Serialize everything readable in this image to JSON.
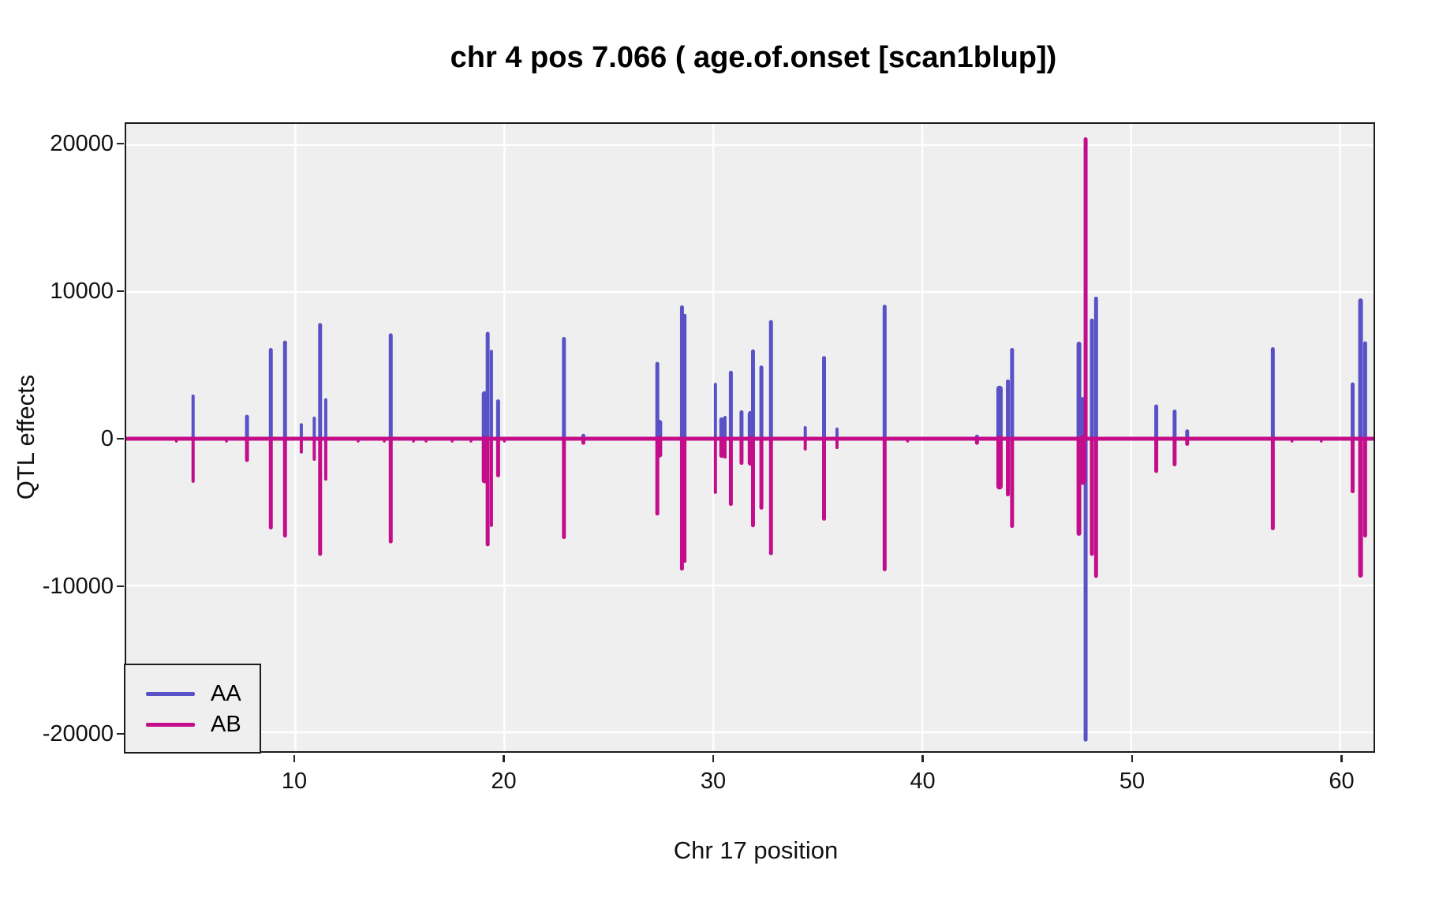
{
  "title": "chr 4 pos 7.066 ( age.of.onset  [scan1blup])",
  "x_axis": {
    "label": "Chr 17 position"
  },
  "y_axis": {
    "label": "QTL effects"
  },
  "legend": {
    "items": [
      {
        "label": "AA",
        "color": "#5952c6"
      },
      {
        "label": "AB",
        "color": "#c30d8a"
      }
    ]
  },
  "chart_data": {
    "type": "line",
    "title": "chr 4 pos 7.066 ( age.of.onset  [scan1blup])",
    "xlabel": "Chr 17 position",
    "ylabel": "QTL effects",
    "xlim": [
      1.9,
      61.6
    ],
    "ylim": [
      -21290,
      21450
    ],
    "x_ticks": [
      10,
      20,
      30,
      40,
      50,
      60
    ],
    "x_tick_labels": [
      "10",
      "20",
      "30",
      "40",
      "50",
      "60"
    ],
    "y_ticks": [
      {
        "value": 20000,
        "label": "20000"
      },
      {
        "value": 10000,
        "label": "10000"
      },
      {
        "value": 0,
        "label": "0"
      },
      {
        "value": -10000,
        "label": "-10000"
      },
      {
        "value": -20000,
        "label": "-20000"
      }
    ],
    "panel_bg": "#efefef",
    "grid_color": "#ffffff",
    "grid": true,
    "legend_position": "bottom-left",
    "baseline_value": 0,
    "series_colors": {
      "AA": "#5952c6",
      "AB": "#c30d8a"
    },
    "spike_columns": [
      "x_position",
      "AA_effect",
      "AB_effect",
      "line_width_px"
    ],
    "spikes": [
      [
        5.1,
        2900,
        -2900,
        4
      ],
      [
        7.68,
        1500,
        -1450,
        5
      ],
      [
        8.82,
        6050,
        -6050,
        5
      ],
      [
        9.5,
        6550,
        -6600,
        5
      ],
      [
        10.28,
        950,
        -900,
        4
      ],
      [
        10.9,
        1400,
        -1400,
        4
      ],
      [
        11.18,
        7750,
        -7850,
        5
      ],
      [
        11.45,
        2650,
        -2750,
        4
      ],
      [
        14.56,
        7050,
        -7000,
        5
      ],
      [
        19.05,
        3050,
        -2850,
        7
      ],
      [
        19.2,
        7150,
        -7200,
        5
      ],
      [
        19.38,
        5950,
        -5900,
        4
      ],
      [
        19.7,
        2550,
        -2500,
        5
      ],
      [
        22.85,
        6800,
        -6700,
        5
      ],
      [
        23.78,
        200,
        -280,
        5
      ],
      [
        27.32,
        5100,
        -5100,
        5
      ],
      [
        27.42,
        1100,
        -1100,
        7
      ],
      [
        28.5,
        8950,
        -8850,
        5
      ],
      [
        28.64,
        8400,
        -8350,
        4
      ],
      [
        30.1,
        3700,
        -3650,
        4
      ],
      [
        30.4,
        1300,
        -1150,
        6
      ],
      [
        30.56,
        1450,
        -1250,
        4
      ],
      [
        30.84,
        4500,
        -4450,
        5
      ],
      [
        31.35,
        1800,
        -1650,
        5
      ],
      [
        31.78,
        1700,
        -1650,
        7
      ],
      [
        31.9,
        5950,
        -5900,
        5
      ],
      [
        32.3,
        4850,
        -4700,
        5
      ],
      [
        32.76,
        7950,
        -7800,
        5
      ],
      [
        34.4,
        750,
        -700,
        4
      ],
      [
        35.3,
        5500,
        -5450,
        5
      ],
      [
        35.92,
        650,
        -600,
        4
      ],
      [
        38.2,
        9000,
        -8900,
        5
      ],
      [
        42.62,
        150,
        -280,
        5
      ],
      [
        43.7,
        3400,
        -3250,
        8
      ],
      [
        44.1,
        3900,
        -3800,
        5
      ],
      [
        44.3,
        6050,
        -5950,
        5
      ],
      [
        47.5,
        6450,
        -6450,
        6
      ],
      [
        47.68,
        2600,
        -2900,
        9
      ],
      [
        47.82,
        -20500,
        20400,
        5
      ],
      [
        48.12,
        8050,
        -7850,
        5
      ],
      [
        48.32,
        9550,
        -9350,
        5
      ],
      [
        51.2,
        2200,
        -2200,
        5
      ],
      [
        52.08,
        1850,
        -1750,
        5
      ],
      [
        52.68,
        500,
        -350,
        5
      ],
      [
        56.78,
        6100,
        -6100,
        5
      ],
      [
        60.6,
        3700,
        -3580,
        5
      ],
      [
        60.98,
        9400,
        -9300,
        6
      ],
      [
        61.2,
        6500,
        -6600,
        5
      ]
    ],
    "small_marker_ticks": {
      "AB_value": -170,
      "x": [
        4.3,
        6.7,
        13.0,
        14.25,
        15.65,
        16.25,
        17.5,
        18.4,
        20.0,
        39.3,
        57.7,
        59.1
      ]
    }
  }
}
